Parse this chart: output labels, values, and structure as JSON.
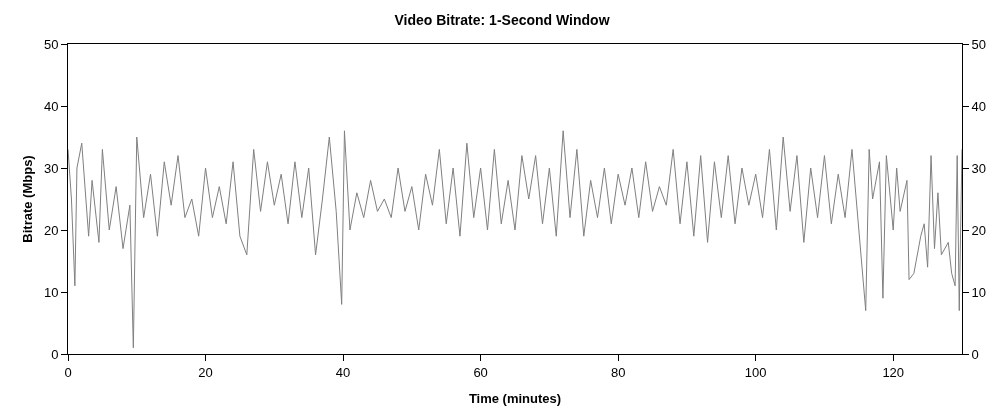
{
  "chart_data": {
    "type": "line",
    "title": "Video Bitrate: 1-Second Window",
    "xlabel": "Time (minutes)",
    "ylabel": "Bitrate (Mbps)",
    "x": [
      0,
      0.5,
      1,
      1.3,
      2,
      3,
      3.5,
      4.5,
      5,
      6,
      7,
      8,
      9,
      9.5,
      10,
      11,
      12,
      13,
      14,
      15,
      16,
      17,
      18,
      19,
      20,
      21,
      22,
      23,
      24,
      25,
      26,
      27,
      28,
      29,
      30,
      31,
      32,
      33,
      34,
      35,
      36,
      37,
      38,
      39,
      39.8,
      40.2,
      41,
      42,
      43,
      44,
      45,
      46,
      47,
      48,
      49,
      50,
      51,
      52,
      53,
      54,
      55,
      56,
      57,
      58,
      59,
      60,
      61,
      62,
      63,
      64,
      65,
      66,
      67,
      68,
      69,
      70,
      71,
      72,
      73,
      74,
      75,
      76,
      77,
      78,
      79,
      80,
      81,
      82,
      83,
      84,
      85,
      86,
      87,
      88,
      89,
      90,
      91,
      92,
      93,
      94,
      95,
      96,
      97,
      98,
      99,
      100,
      101,
      102,
      103,
      104,
      105,
      106,
      107,
      108,
      109,
      110,
      111,
      112,
      113,
      114,
      115,
      116,
      116.5,
      117,
      118,
      118.5,
      119,
      120,
      120.5,
      121,
      122,
      122.3,
      123,
      124,
      124.5,
      125,
      125.5,
      126,
      126.5,
      127,
      128,
      128.5,
      129,
      129.3,
      129.6,
      130
    ],
    "series": [
      {
        "color": "#808080",
        "values": [
          33,
          25,
          11,
          30,
          34,
          19,
          28,
          18,
          33,
          20,
          27,
          17,
          24,
          1,
          35,
          22,
          29,
          19,
          31,
          24,
          32,
          22,
          25,
          19,
          30,
          22,
          27,
          21,
          31,
          19,
          16,
          33,
          23,
          31,
          24,
          29,
          21,
          31,
          22,
          30,
          16,
          25,
          35,
          23,
          8,
          36,
          20,
          26,
          22,
          28,
          23,
          25,
          22,
          30,
          23,
          27,
          20,
          29,
          24,
          33,
          21,
          30,
          19,
          34,
          22,
          30,
          20,
          33,
          21,
          28,
          20,
          32,
          25,
          32,
          21,
          30,
          19,
          36,
          22,
          33,
          19,
          28,
          22,
          30,
          21,
          29,
          24,
          30,
          22,
          31,
          23,
          27,
          24,
          33,
          21,
          31,
          19,
          32,
          18,
          31,
          22,
          32,
          21,
          30,
          24,
          29,
          22,
          33,
          20,
          35,
          23,
          32,
          18,
          30,
          22,
          32,
          21,
          29,
          22,
          33,
          20,
          7,
          33,
          25,
          31,
          9,
          32,
          20,
          30,
          23,
          28,
          12,
          13,
          19,
          21,
          14,
          32,
          17,
          26,
          16,
          18,
          13,
          11,
          32,
          7,
          33
        ]
      }
    ],
    "xlim": [
      0,
      130
    ],
    "xticks": [
      0,
      20,
      40,
      60,
      80,
      100,
      120
    ],
    "ylim": [
      0,
      50
    ],
    "yticks": [
      0,
      10,
      20,
      30,
      40,
      50
    ],
    "y2lim": [
      0,
      50
    ],
    "y2ticks": [
      0,
      10,
      20,
      30,
      40,
      50
    ],
    "grid": false,
    "legend": false,
    "marker": "none",
    "line_style": "solid"
  }
}
